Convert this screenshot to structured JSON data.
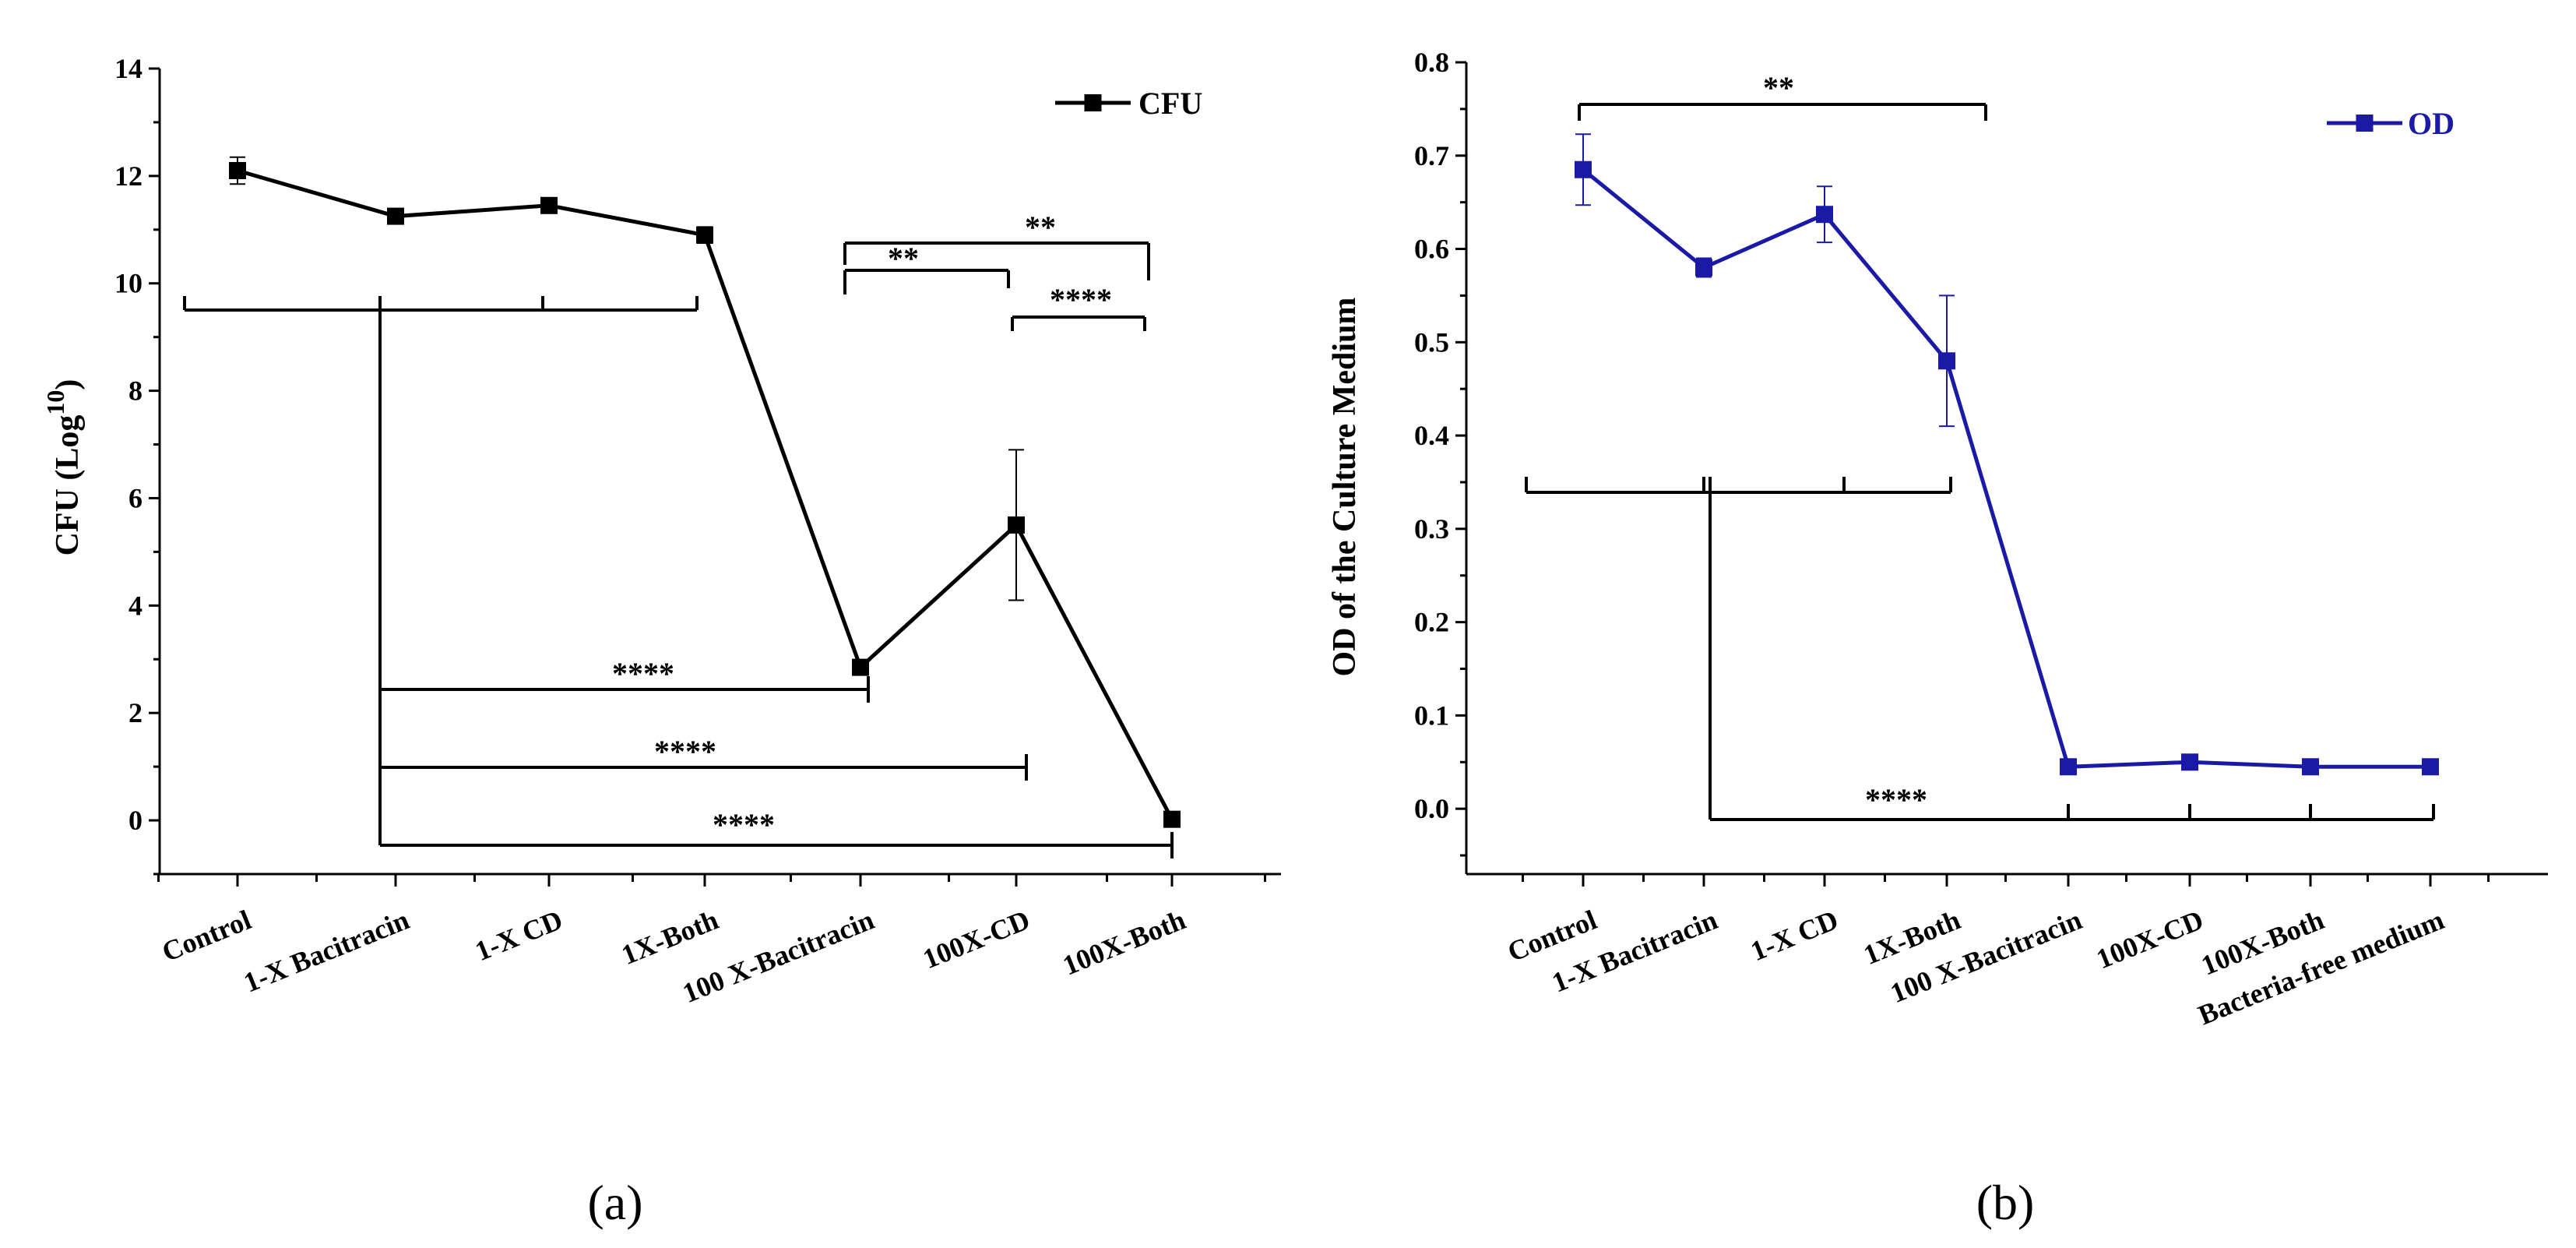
{
  "chart_data": [
    {
      "type": "line",
      "panel_label": "(a)",
      "ylabel": "CFU (Log",
      "ylabel_sup": "10",
      "ylabel_close": ")",
      "ylim": [
        -1,
        14
      ],
      "yticks": [
        0,
        2,
        4,
        6,
        8,
        10,
        12,
        14
      ],
      "categories": [
        "Control",
        "1-X Bacitracin",
        "1-X CD",
        "1X-Both",
        "100 X-Bacitracin",
        "100X-CD",
        "100X-Both"
      ],
      "series": [
        {
          "name": "CFU",
          "color": "#000000",
          "values": [
            12.1,
            11.25,
            11.45,
            10.9,
            2.85,
            5.5,
            0.02
          ],
          "errors": [
            0.25,
            0.08,
            0.1,
            0.15,
            0.1,
            1.4,
            0.05
          ]
        }
      ],
      "legend": "top-right",
      "significance": [
        {
          "label": "**",
          "from": 4,
          "to": 5
        },
        {
          "label": "**",
          "from": 4,
          "to": 6
        },
        {
          "label": "****",
          "from": 5,
          "to": 6
        },
        {
          "label": "****",
          "from": "group 0-3",
          "to": 4
        },
        {
          "label": "****",
          "from": "group 0-3",
          "to": 5
        },
        {
          "label": "****",
          "from": "group 0-3",
          "to": 6
        }
      ]
    },
    {
      "type": "line",
      "panel_label": "(b)",
      "ylabel": "OD of the Culture Medium",
      "ylim": [
        -0.07,
        0.8
      ],
      "yticks": [
        0.0,
        0.1,
        0.2,
        0.3,
        0.4,
        0.5,
        0.6,
        0.7,
        0.8
      ],
      "ytick_labels": [
        "0.0",
        "0.1",
        "0.2",
        "0.3",
        "0.4",
        "0.5",
        "0.6",
        "0.7",
        "0.8"
      ],
      "categories": [
        "Control",
        "1-X Bacitracin",
        "1-X CD",
        "1X-Both",
        "100 X-Bacitracin",
        "100X-CD",
        "100X-Both",
        "Bacteria-free medium"
      ],
      "series": [
        {
          "name": "OD",
          "color": "#1a1aa6",
          "values": [
            0.685,
            0.58,
            0.637,
            0.48,
            0.045,
            0.05,
            0.045,
            0.045
          ],
          "errors": [
            0.038,
            0.01,
            0.03,
            0.07,
            0.004,
            0.004,
            0.004,
            0.004
          ]
        }
      ],
      "legend": "top-right",
      "significance": [
        {
          "label": "**",
          "from": 0,
          "to": 3
        },
        {
          "label": "****",
          "from": "group 0-3",
          "to": "group 4-7"
        }
      ]
    }
  ]
}
